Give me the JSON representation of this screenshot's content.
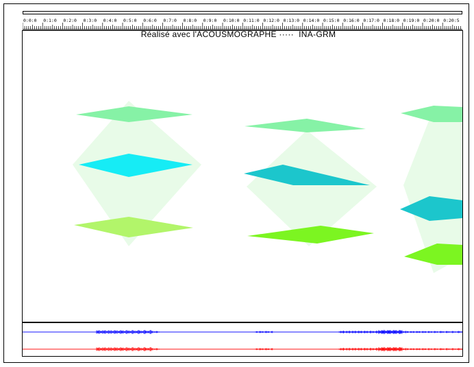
{
  "app": {
    "credit_text": "Réalisé avec l'ACOUSMOGRAPHE ·····  INA-GRM"
  },
  "ruler": {
    "labels": [
      "0:0:0",
      "0:1:0",
      "0:2:0",
      "0:3:0",
      "0:4:0",
      "0:5:0",
      "0:6:0",
      "0:7:0",
      "0:8:0",
      "0:9:0",
      "0:10:0",
      "0:11:0",
      "0:12:0",
      "0:13:0",
      "0:14:0",
      "0:15:0",
      "0:16:0",
      "0:17:0",
      "0:18:0",
      "0:19:0",
      "0:20:0",
      "0:20:5"
    ]
  },
  "colors": {
    "halo": "#e8fbe8",
    "mint": "#86f2a6",
    "cyan": "#16ecf5",
    "teal": "#1cc6cc",
    "lightgreen": "#b2f56a",
    "green": "#7cf521",
    "wave_blue": "#1414ff",
    "wave_red": "#ff1414"
  }
}
